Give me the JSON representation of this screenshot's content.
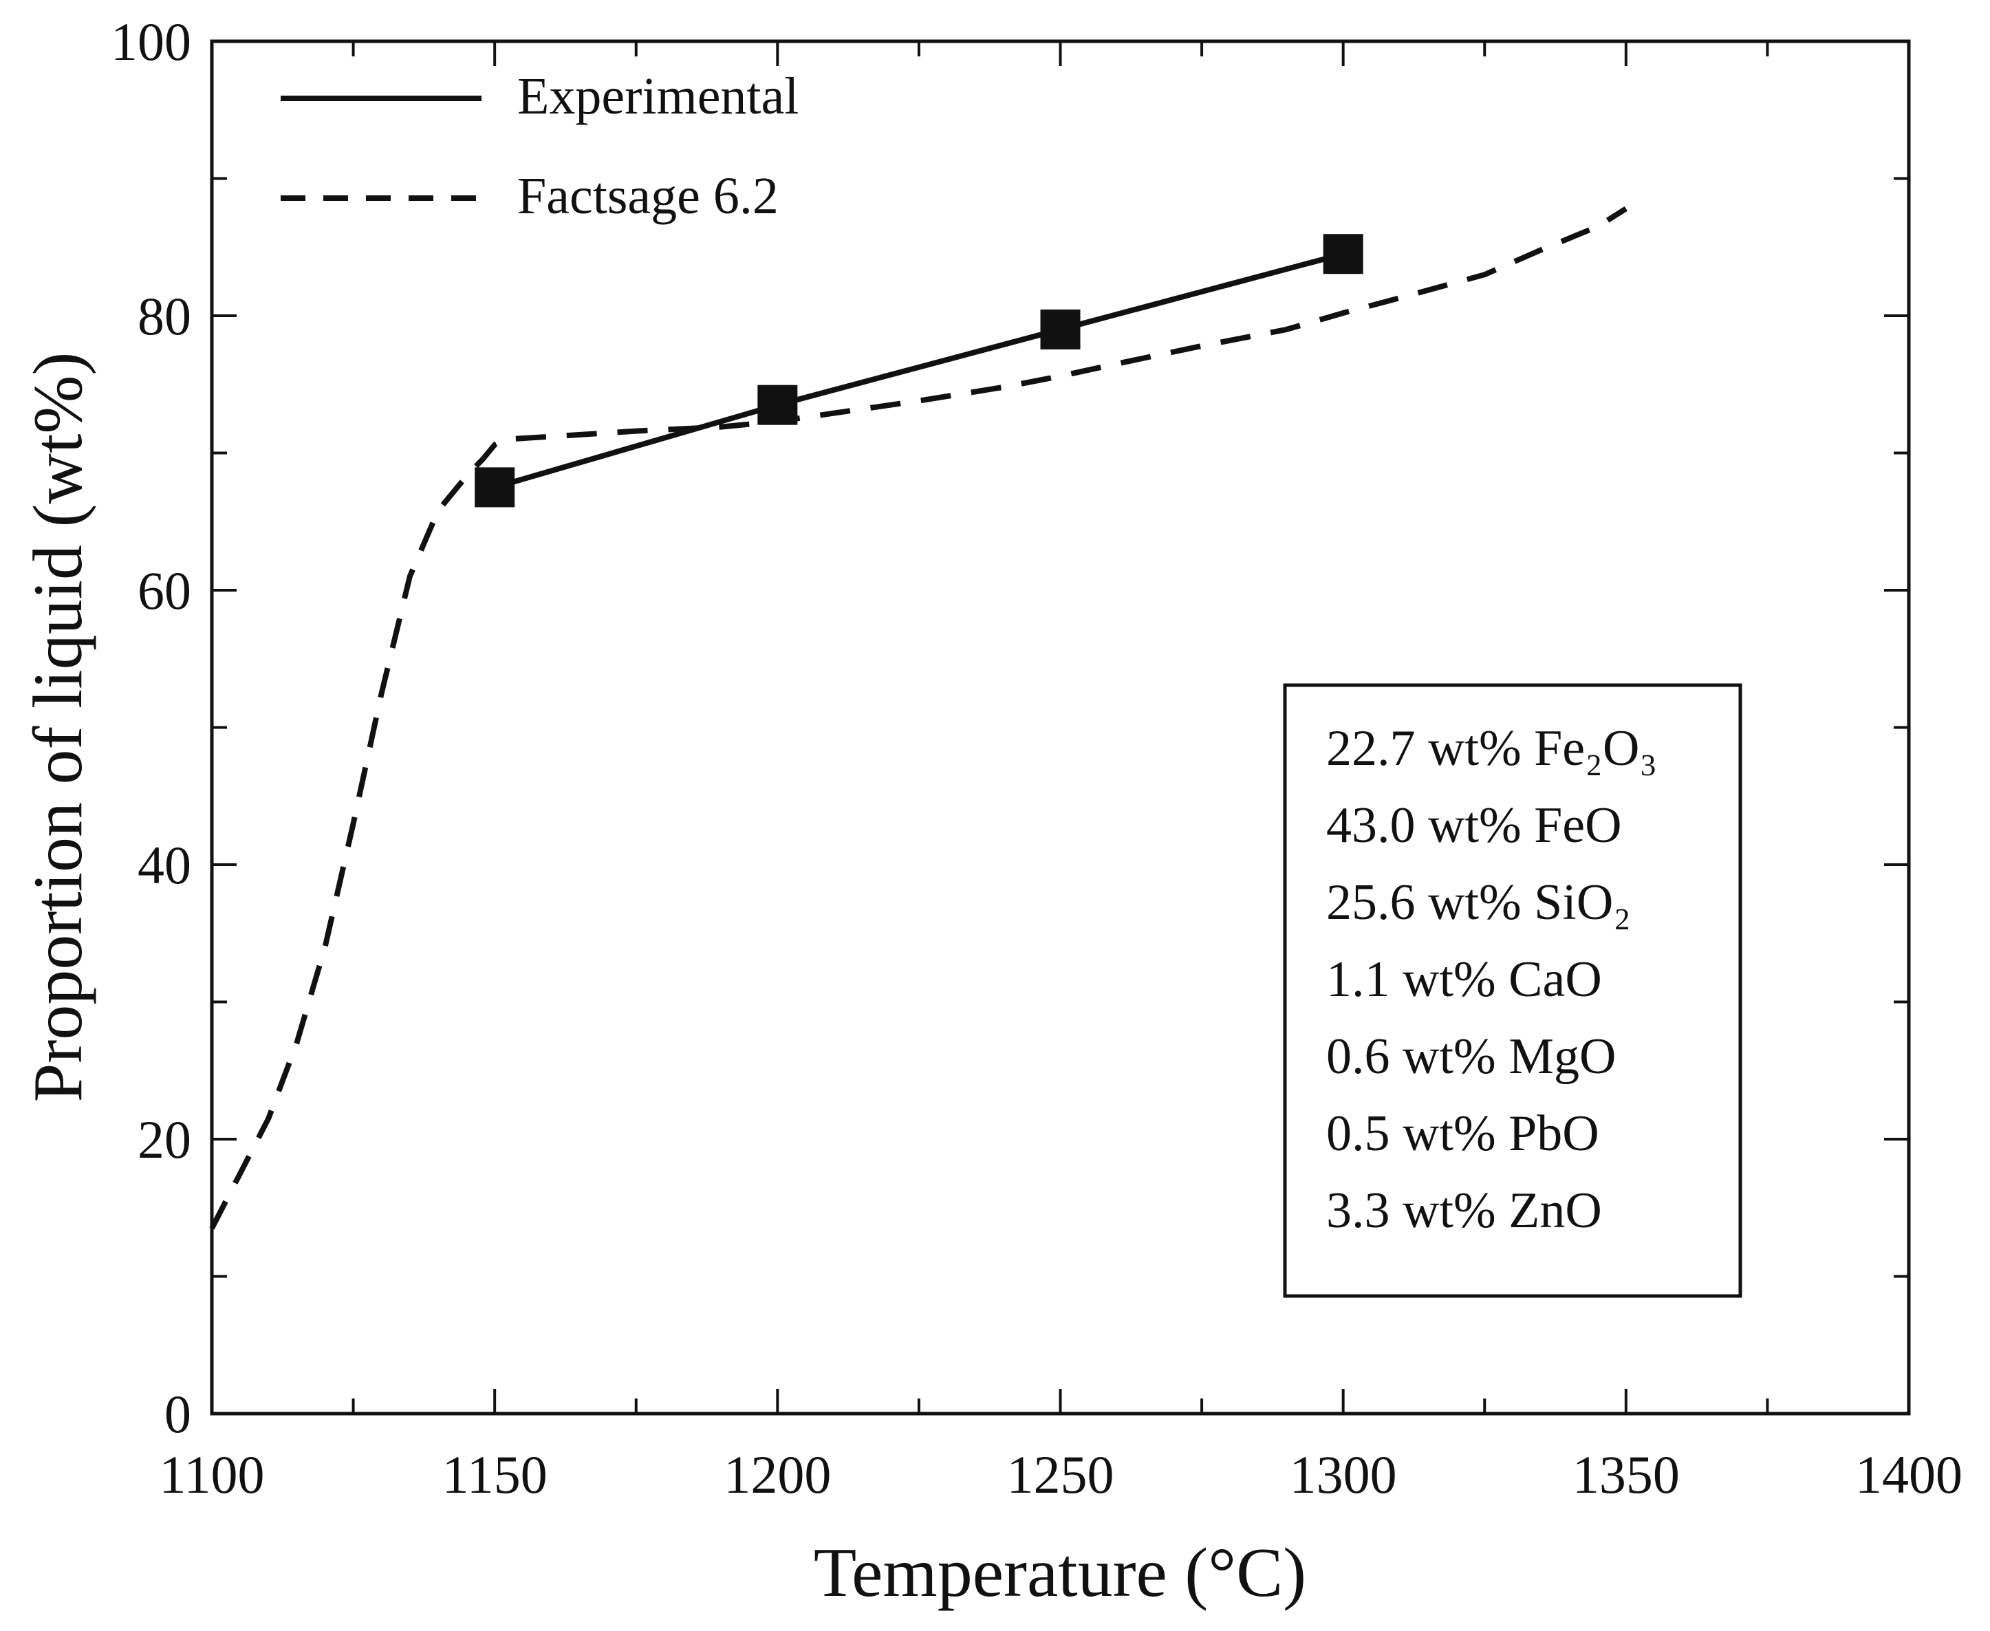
{
  "chart_data": {
    "type": "line",
    "title": "",
    "xlabel": "Temperature (°C)",
    "ylabel": "Proportion of liquid (wt%)",
    "xlim": [
      1100,
      1400
    ],
    "ylim": [
      0,
      100
    ],
    "x_major_ticks": [
      1100,
      1150,
      1200,
      1250,
      1300,
      1350,
      1400
    ],
    "y_major_ticks": [
      0,
      20,
      40,
      60,
      80,
      100
    ],
    "x_tick_labels": [
      "1100",
      "1150",
      "1200",
      "1250",
      "1300",
      "1350",
      "1400"
    ],
    "y_tick_labels": [
      "0",
      "20",
      "40",
      "60",
      "80",
      "100"
    ],
    "x_minor_step": 25,
    "y_minor_step": 10,
    "grid": false,
    "legend_position": "top-left",
    "series": [
      {
        "name": "Experimental",
        "style": "solid",
        "marker": "square",
        "x": [
          1150,
          1200,
          1250,
          1300
        ],
        "y": [
          67.5,
          73.5,
          79.0,
          84.5
        ]
      },
      {
        "name": "Factsage 6.2",
        "style": "dashed",
        "marker": "none",
        "x": [
          1100,
          1105,
          1110,
          1115,
          1120,
          1125,
          1130,
          1135,
          1140,
          1145,
          1148,
          1150,
          1152,
          1160,
          1175,
          1190,
          1200,
          1210,
          1225,
          1240,
          1250,
          1260,
          1275,
          1290,
          1300,
          1310,
          1325,
          1335,
          1345,
          1350
        ],
        "y": [
          13.5,
          17.5,
          21.5,
          27.0,
          34.0,
          43.0,
          52.5,
          61.0,
          65.8,
          68.3,
          69.6,
          70.6,
          71.0,
          71.2,
          71.6,
          71.9,
          72.3,
          72.9,
          73.8,
          74.8,
          75.6,
          76.5,
          77.8,
          79.0,
          80.2,
          81.3,
          83.0,
          84.8,
          86.5,
          87.8
        ]
      }
    ],
    "annotation_box": {
      "lines": [
        "22.7 wt% Fe₂O₃",
        "43.0 wt% FeO",
        "25.6 wt% SiO₂",
        "1.1 wt% CaO",
        "0.6 wt% MgO",
        "0.5 wt% PbO",
        "3.3 wt% ZnO"
      ]
    },
    "colors": {
      "line": "#111111",
      "background": "#ffffff"
    }
  }
}
